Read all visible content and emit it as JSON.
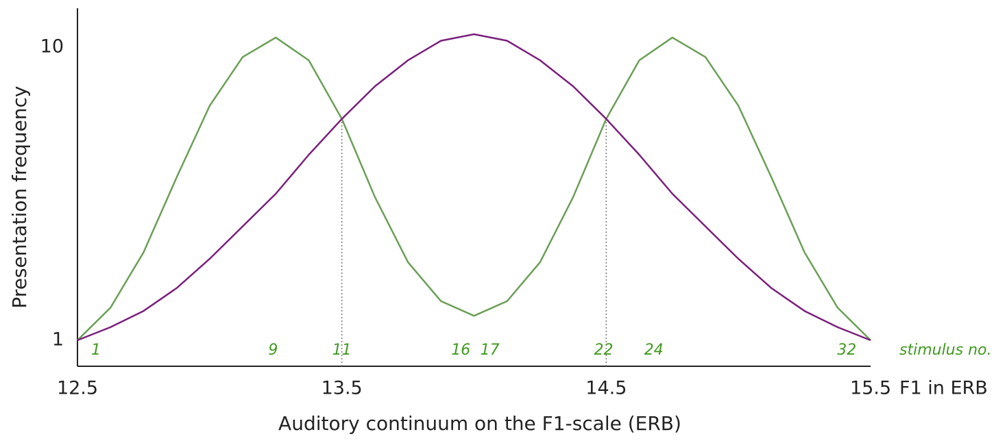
{
  "chart_data": {
    "type": "line",
    "x_label": "Auditory continuum on the F1-scale (ERB)",
    "x_unit_label": "F1 in ERB",
    "y_label": "Presentation frequency",
    "x": [
      12.5,
      12.625,
      12.75,
      12.875,
      13.0,
      13.125,
      13.25,
      13.375,
      13.5,
      13.625,
      13.75,
      13.875,
      14.0,
      14.125,
      14.25,
      14.375,
      14.5,
      14.625,
      14.75,
      14.875,
      15.0,
      15.125,
      15.25,
      15.375,
      15.5
    ],
    "series": [
      {
        "color": "#6a9f55",
        "values": [
          1.0,
          2.0,
          3.7,
          6.0,
          8.2,
          9.7,
          10.3,
          9.6,
          7.8,
          5.4,
          3.4,
          2.2,
          1.75,
          2.2,
          3.4,
          5.4,
          7.8,
          9.6,
          10.3,
          9.7,
          8.2,
          6.0,
          3.7,
          2.0,
          1.0
        ]
      },
      {
        "color": "#7a1f7c",
        "values": [
          1.0,
          1.4,
          1.9,
          2.6,
          3.5,
          4.5,
          5.5,
          6.7,
          7.8,
          8.8,
          9.6,
          10.2,
          10.4,
          10.2,
          9.6,
          8.8,
          7.8,
          6.7,
          5.5,
          4.5,
          3.5,
          2.6,
          1.9,
          1.4,
          1.0
        ]
      }
    ],
    "reference_lines": [
      {
        "x": 13.5,
        "y": 7.8
      },
      {
        "x": 14.5,
        "y": 7.8
      }
    ],
    "stimulus_title": "stimulus no.",
    "stimuli": [
      {
        "label": 1,
        "x": 12.57
      },
      {
        "label": 9,
        "x": 13.24
      },
      {
        "label": 11,
        "x": 13.5
      },
      {
        "label": 16,
        "x": 13.95
      },
      {
        "label": 17,
        "x": 14.06
      },
      {
        "label": 22,
        "x": 14.49
      },
      {
        "label": 24,
        "x": 14.68
      },
      {
        "label": 32,
        "x": 15.41
      }
    ],
    "xlim": [
      12.5,
      15.5
    ],
    "xticks": [
      12.5,
      13.5,
      14.5,
      15.5
    ],
    "ylim": [
      0.2,
      11.2
    ],
    "yticks": [
      1,
      10
    ],
    "grid": false
  }
}
